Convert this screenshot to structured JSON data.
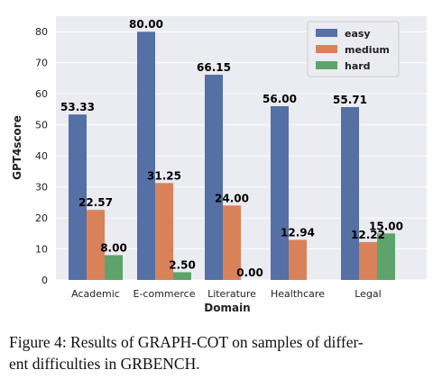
{
  "chart_data": {
    "type": "bar",
    "xlabel": "Domain",
    "ylabel": "GPT4score",
    "ylim": [
      0,
      85
    ],
    "yticks": [
      0,
      10,
      20,
      30,
      40,
      50,
      60,
      70,
      80
    ],
    "grid": true,
    "legend_position": "top-right",
    "categories": [
      "Academic",
      "E-commerce",
      "Literature",
      "Healthcare",
      "Legal"
    ],
    "series": [
      {
        "name": "easy",
        "color": "#5470a4",
        "values": [
          53.33,
          80.0,
          66.15,
          56.0,
          55.71
        ],
        "labels": [
          "53.33",
          "80.00",
          "66.15",
          "56.00",
          "55.71"
        ]
      },
      {
        "name": "medium",
        "color": "#d98259",
        "values": [
          22.57,
          31.25,
          24.0,
          12.94,
          12.22
        ],
        "labels": [
          "22.57",
          "31.25",
          "24.00",
          "12.94",
          "12.22"
        ]
      },
      {
        "name": "hard",
        "color": "#5ea36b",
        "values": [
          8.0,
          2.5,
          0.0,
          null,
          15.0
        ],
        "labels": [
          "8.00",
          "2.50",
          "0.00",
          null,
          "15.00"
        ]
      }
    ]
  },
  "caption": {
    "prefix": "Figure 4: Results of ",
    "graph_g": "G",
    "graph_rest": "RAPH",
    "dash": "-",
    "cot_c": "C",
    "cot_rest": "O",
    "cot_t": "T",
    "middle": " on samples of differ-",
    "line2_prefix": "ent difficulties in ",
    "grb": "GRB",
    "ench": "ENCH",
    "end": "."
  }
}
